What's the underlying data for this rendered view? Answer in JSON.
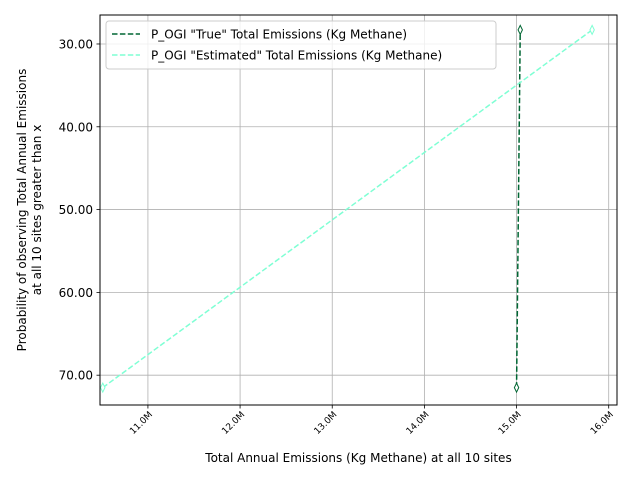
{
  "chart_data": {
    "type": "line",
    "xlabel": "Total Annual Emissions (Kg Methane) at all 10 sites",
    "ylabel_lines": [
      "Probability of observing Total Annual Emissions",
      "at all 10 sites greater than x"
    ],
    "xlim": [
      10480000,
      16090000
    ],
    "ylim": [
      73.6,
      26.5
    ],
    "y_inverted": true,
    "grid": true,
    "legend_position": "top-left",
    "x_ticks": [
      11000000,
      12000000,
      13000000,
      14000000,
      15000000,
      16000000
    ],
    "x_tick_labels": [
      "11.0M",
      "12.0M",
      "13.0M",
      "14.0M",
      "15.0M",
      "16.0M"
    ],
    "y_ticks": [
      30,
      40,
      50,
      60,
      70
    ],
    "y_tick_labels": [
      "30.00",
      "40.00",
      "50.00",
      "60.00",
      "70.00"
    ],
    "series": [
      {
        "name": "P_OGI \"True\" Total Emissions (Kg Methane)",
        "color": "#006633",
        "linestyle": "dashed",
        "marker": "thin-diamond",
        "x": [
          15000000,
          15040000
        ],
        "y": [
          71.5,
          28.3
        ]
      },
      {
        "name": "P_OGI \"Estimated\" Total Emissions (Kg Methane)",
        "color": "#7fffd4",
        "linestyle": "dashed",
        "marker": "thin-diamond",
        "x": [
          10510000,
          15820000
        ],
        "y": [
          71.5,
          28.3
        ]
      }
    ]
  }
}
